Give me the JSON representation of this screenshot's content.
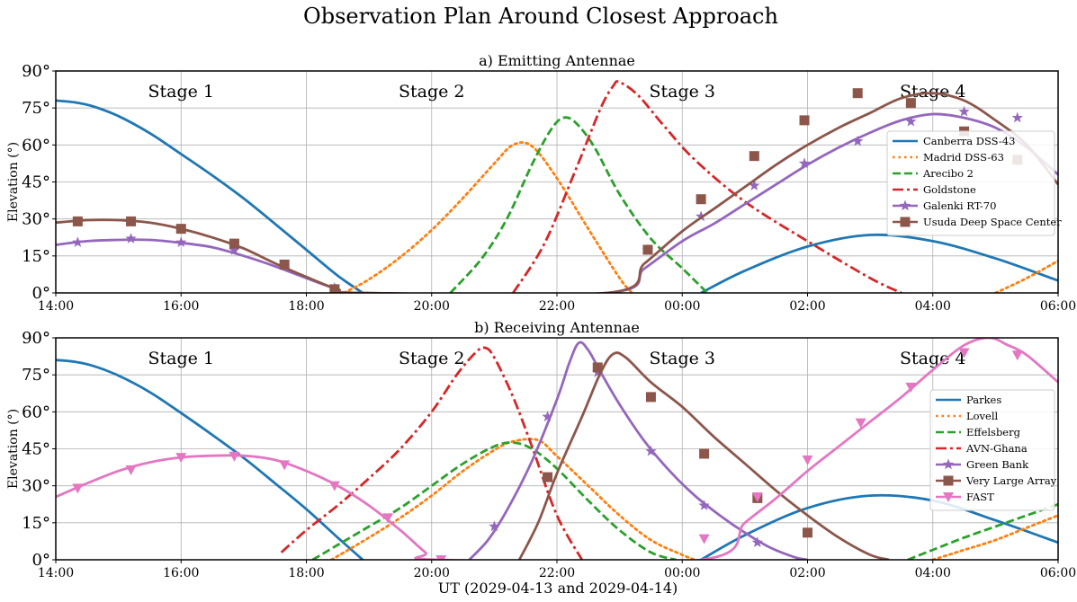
{
  "figure": {
    "title": "Observation Plan Around Closest Approach",
    "xlabel": "UT (2029-04-13 and 2029-04-14)"
  },
  "chart_data": [
    {
      "type": "line",
      "title": "a) Emitting Antennae",
      "ylabel": "Elevation (°)",
      "xlim": [
        14,
        30
      ],
      "ylim": [
        0,
        90
      ],
      "xticks": [
        14,
        16,
        18,
        20,
        22,
        24,
        26,
        28,
        30
      ],
      "xtick_labels": [
        "14:00",
        "16:00",
        "18:00",
        "20:00",
        "22:00",
        "00:00",
        "02:00",
        "04:00",
        "06:00"
      ],
      "yticks": [
        0,
        15,
        30,
        45,
        60,
        75,
        90
      ],
      "ytick_labels": [
        "0°",
        "15°",
        "30°",
        "45°",
        "60°",
        "75°",
        "90°"
      ],
      "grid": true,
      "legend_position": "center-right",
      "stage_labels": [
        {
          "text": "Stage 1",
          "x": 16.0
        },
        {
          "text": "Stage 2",
          "x": 20.0
        },
        {
          "text": "Stage 3",
          "x": 24.0
        },
        {
          "text": "Stage 4",
          "x": 28.0
        }
      ],
      "series": [
        {
          "name": "Canberra DSS-43",
          "color": "#1f77b4",
          "style": "solid",
          "marker": "none",
          "x": [
            14.0,
            14.3,
            14.6,
            15.0,
            15.5,
            16.0,
            16.5,
            17.0,
            17.5,
            18.0,
            18.5,
            18.9
          ],
          "y": [
            78,
            77.3,
            75.6,
            71.7,
            64.8,
            56.3,
            47.6,
            38.3,
            28.0,
            17.5,
            7.0,
            0
          ]
        },
        {
          "name": "Canberra DSS-43",
          "color": "#1f77b4",
          "style": "solid",
          "marker": "none",
          "x": [
            24.3,
            25.0,
            26.0,
            27.0,
            28.0,
            29.0,
            30.0
          ],
          "y": [
            0,
            9,
            18.8,
            23.5,
            21.0,
            14.0,
            5.0
          ]
        },
        {
          "name": "Madrid DSS-63",
          "color": "#ff7f0e",
          "style": "dotted",
          "marker": "none",
          "x": [
            18.6,
            19.0,
            19.5,
            20.0,
            20.5,
            21.0,
            21.3,
            21.6,
            22.0,
            22.5,
            23.0,
            23.2
          ],
          "y": [
            0,
            5.5,
            14.5,
            25.5,
            38.5,
            52.5,
            60.0,
            59.5,
            46.5,
            26.0,
            6.0,
            0
          ]
        },
        {
          "name": "Madrid DSS-63",
          "color": "#ff7f0e",
          "style": "dotted",
          "marker": "none",
          "x": [
            29.0,
            29.5,
            30.0
          ],
          "y": [
            0,
            6.0,
            13.0
          ]
        },
        {
          "name": "Arecibo 2",
          "color": "#2ca02c",
          "style": "dashed",
          "marker": "none",
          "x": [
            20.3,
            20.8,
            21.2,
            21.6,
            21.9,
            22.1,
            22.3,
            22.6,
            23.0,
            23.5,
            24.0,
            24.4
          ],
          "y": [
            0,
            14,
            30,
            52,
            66,
            71,
            69,
            59,
            40,
            22,
            10,
            0
          ]
        },
        {
          "name": "Goldstone",
          "color": "#d62728",
          "style": "dashdot",
          "marker": "none",
          "x": [
            21.3,
            21.8,
            22.3,
            22.7,
            22.9,
            23.0,
            23.3,
            23.7,
            24.2,
            25.0,
            26.0,
            27.0,
            27.5
          ],
          "y": [
            0,
            20,
            50,
            75,
            84,
            85.5,
            80,
            68,
            54,
            37,
            21,
            6,
            0
          ]
        },
        {
          "name": "Galenki RT-70",
          "color": "#9467bd",
          "style": "solid",
          "marker": "star",
          "x": [
            14.0,
            14.5,
            15.0,
            15.5,
            16.0,
            16.5,
            17.0,
            17.5,
            18.0,
            18.5,
            18.9,
            22.8,
            23.4,
            24.0,
            24.5,
            25.0,
            25.5,
            26.0,
            26.5,
            27.0,
            27.5,
            28.0,
            28.5,
            29.0,
            29.5,
            30.0
          ],
          "y": [
            19.5,
            21,
            21.5,
            21.5,
            20.3,
            18.5,
            15.0,
            10.8,
            6.0,
            1.5,
            0,
            0,
            10,
            21,
            28,
            36,
            44,
            52,
            59,
            65,
            70,
            72.5,
            71,
            67,
            59,
            48
          ],
          "markers_x": [
            14.35,
            15.2,
            16.0,
            16.85,
            17.65,
            18.45,
            23.45,
            24.3,
            25.15,
            25.95,
            26.8,
            27.65,
            28.5,
            29.35
          ],
          "markers_y": [
            20.5,
            22,
            20.5,
            17.3,
            11.0,
            2.0,
            17.5,
            31,
            43.5,
            52.5,
            61.5,
            69.5,
            73.5,
            71
          ]
        },
        {
          "name": "Usuda Deep Space Center",
          "color": "#8c564b",
          "style": "solid",
          "marker": "square",
          "x": [
            14.0,
            14.5,
            15.0,
            15.5,
            16.0,
            16.5,
            17.0,
            17.5,
            18.0,
            18.5,
            18.9,
            22.8,
            23.4,
            24.0,
            24.5,
            25.0,
            25.5,
            26.0,
            26.5,
            27.0,
            27.5,
            28.0,
            28.5,
            29.0,
            29.5,
            30.0
          ],
          "y": [
            28.5,
            29.5,
            29.5,
            28.5,
            26.0,
            22.5,
            18.0,
            12.0,
            6.5,
            1.5,
            0,
            0,
            12,
            25,
            34,
            43,
            52,
            60,
            67,
            73,
            79,
            81,
            78,
            70,
            60,
            44
          ],
          "markers_x": [
            14.35,
            15.2,
            16.0,
            16.85,
            17.65,
            18.45,
            23.45,
            24.3,
            25.15,
            25.95,
            26.8,
            27.65,
            28.5,
            29.35
          ],
          "markers_y": [
            29,
            29,
            26,
            20,
            11.5,
            1.5,
            17.5,
            38,
            55.5,
            70,
            81,
            77,
            65.5,
            54
          ]
        }
      ]
    },
    {
      "type": "line",
      "title": "b) Receiving Antennae",
      "ylabel": "Elevation (°)",
      "xlim": [
        14,
        30
      ],
      "ylim": [
        0,
        90
      ],
      "xticks": [
        14,
        16,
        18,
        20,
        22,
        24,
        26,
        28,
        30
      ],
      "xtick_labels": [
        "14:00",
        "16:00",
        "18:00",
        "20:00",
        "22:00",
        "00:00",
        "02:00",
        "04:00",
        "06:00"
      ],
      "yticks": [
        0,
        15,
        30,
        45,
        60,
        75,
        90
      ],
      "ytick_labels": [
        "0°",
        "15°",
        "30°",
        "45°",
        "60°",
        "75°",
        "90°"
      ],
      "grid": true,
      "legend_position": "center-right",
      "stage_labels": [
        {
          "text": "Stage 1",
          "x": 16.0
        },
        {
          "text": "Stage 2",
          "x": 20.0
        },
        {
          "text": "Stage 3",
          "x": 24.0
        },
        {
          "text": "Stage 4",
          "x": 28.0
        }
      ],
      "series": [
        {
          "name": "Parkes",
          "color": "#1f77b4",
          "style": "solid",
          "marker": "none",
          "x": [
            14.0,
            14.3,
            14.6,
            15.0,
            15.5,
            16.0,
            16.5,
            17.0,
            17.5,
            18.0,
            18.5,
            18.9
          ],
          "y": [
            81,
            80.3,
            78.6,
            74.7,
            68,
            59.5,
            50.6,
            41.3,
            31.0,
            20.5,
            9.0,
            0
          ]
        },
        {
          "name": "Parkes",
          "color": "#1f77b4",
          "style": "solid",
          "marker": "none",
          "x": [
            24.3,
            25.0,
            26.0,
            27.0,
            28.0,
            29.0,
            30.0
          ],
          "y": [
            0,
            10,
            21,
            26,
            24,
            16,
            7
          ]
        },
        {
          "name": "Lovell",
          "color": "#ff7f0e",
          "style": "dotted",
          "marker": "none",
          "x": [
            18.4,
            19.0,
            19.5,
            20.0,
            20.5,
            21.0,
            21.3,
            21.7,
            22.0,
            22.5,
            23.0,
            23.5,
            24.0,
            24.2
          ],
          "y": [
            0,
            9,
            17,
            26,
            36,
            44.5,
            48,
            48.5,
            42,
            30,
            18,
            8,
            2,
            0
          ]
        },
        {
          "name": "Lovell",
          "color": "#ff7f0e",
          "style": "dotted",
          "marker": "none",
          "x": [
            28.0,
            28.5,
            29.0,
            29.5,
            30.0
          ],
          "y": [
            0,
            4,
            8,
            13,
            18
          ]
        },
        {
          "name": "Effelsberg",
          "color": "#2ca02c",
          "style": "dashed",
          "marker": "none",
          "x": [
            18.1,
            18.5,
            19.0,
            19.5,
            20.0,
            20.5,
            21.0,
            21.3,
            21.6,
            22.0,
            22.5,
            23.0,
            23.5,
            23.9
          ],
          "y": [
            0,
            6,
            13.5,
            21,
            30,
            39,
            46,
            47.5,
            45,
            37,
            24,
            12,
            3,
            0
          ]
        },
        {
          "name": "Effelsberg",
          "color": "#2ca02c",
          "style": "dashed",
          "marker": "none",
          "x": [
            27.6,
            28.0,
            28.5,
            29.0,
            29.5,
            30.0
          ],
          "y": [
            0,
            4,
            9,
            13.5,
            18,
            22.5
          ]
        },
        {
          "name": "AVN-Ghana",
          "color": "#d62728",
          "style": "dashdot",
          "marker": "none",
          "x": [
            17.6,
            18.0,
            18.5,
            19.0,
            19.5,
            20.0,
            20.4,
            20.7,
            20.85,
            21.0,
            21.3,
            21.6,
            22.0,
            22.4
          ],
          "y": [
            3,
            12,
            22,
            33,
            45,
            60,
            75,
            84,
            86,
            82,
            66,
            46,
            18,
            0
          ]
        },
        {
          "name": "Green Bank",
          "color": "#9467bd",
          "style": "solid",
          "marker": "star",
          "x": [
            20.6,
            20.9,
            21.2,
            21.6,
            22.0,
            22.2,
            22.35,
            22.5,
            22.7,
            23.0,
            23.4,
            23.8,
            24.2,
            24.6,
            25.0,
            25.4,
            25.8,
            26.0
          ],
          "y": [
            0,
            8,
            20,
            40,
            65,
            80,
            88,
            85,
            76,
            63,
            48,
            36,
            26,
            18,
            11,
            5,
            1,
            0
          ],
          "markers_x": [
            21.0,
            21.85,
            22.65,
            23.5,
            24.35,
            25.2
          ],
          "markers_y": [
            13.5,
            58,
            76,
            44,
            22,
            7
          ]
        },
        {
          "name": "Very Large Array",
          "color": "#8c564b",
          "style": "solid",
          "marker": "square",
          "x": [
            21.4,
            21.7,
            22.0,
            22.4,
            22.7,
            22.9,
            23.1,
            23.5,
            24.0,
            24.5,
            25.0,
            25.5,
            26.0,
            26.5,
            27.0,
            27.3
          ],
          "y": [
            0,
            15,
            35,
            58,
            76,
            83.5,
            82,
            72,
            62,
            50,
            39,
            28,
            18,
            9,
            2,
            0
          ],
          "markers_x": [
            21.85,
            22.65,
            23.5,
            24.35,
            25.2,
            26.0
          ],
          "markers_y": [
            33.5,
            78,
            66,
            43,
            25,
            11
          ]
        },
        {
          "name": "FAST",
          "color": "#e377c2",
          "style": "solid",
          "marker": "triangle_down",
          "x": [
            14.0,
            14.5,
            15.0,
            15.5,
            16.0,
            16.5,
            17.0,
            17.5,
            18.0,
            18.5,
            19.0,
            19.5,
            19.9,
            20.1,
            24.3,
            25.0,
            25.5,
            26.0,
            26.5,
            27.0,
            27.5,
            28.0,
            28.5,
            28.9,
            29.2,
            29.5,
            30.0
          ],
          "y": [
            25.5,
            31,
            36,
            39.5,
            41.5,
            42.2,
            42.2,
            40.5,
            36,
            30,
            22,
            12,
            3,
            0,
            0,
            15,
            25,
            36,
            46,
            56,
            66,
            77,
            87,
            90,
            87,
            83,
            72
          ],
          "markers_x": [
            14.35,
            15.2,
            16.0,
            16.85,
            17.65,
            18.45,
            19.3,
            20.15,
            24.35,
            25.2,
            26.0,
            26.85,
            27.65,
            28.5,
            29.35
          ],
          "markers_y": [
            29,
            36.5,
            41.5,
            42,
            38.5,
            30,
            17,
            0,
            8.5,
            25.5,
            40.5,
            55.5,
            70,
            84,
            83
          ]
        }
      ]
    }
  ]
}
